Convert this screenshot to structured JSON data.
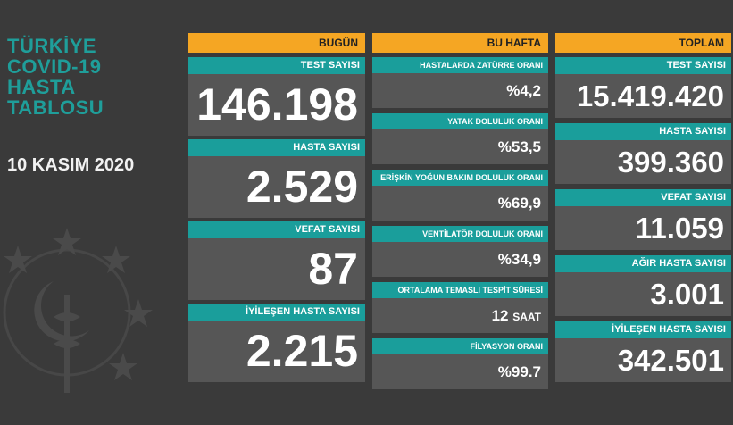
{
  "sidebar": {
    "title_lines": [
      "TÜRKİYE",
      "COVID-19",
      "HASTA",
      "TABLOSU"
    ],
    "date": "10 KASIM 2020"
  },
  "bugun": {
    "header": "BUGÜN",
    "cards": [
      {
        "label": "TEST SAYISI",
        "value": "146.198"
      },
      {
        "label": "HASTA SAYISI",
        "value": "2.529"
      },
      {
        "label": "VEFAT SAYISI",
        "value": "87"
      },
      {
        "label": "İYİLEŞEN HASTA SAYISI",
        "value": "2.215"
      }
    ]
  },
  "hafta": {
    "header": "BU HAFTA",
    "cards": [
      {
        "label": "HASTALARDA ZATÜRRE ORANI",
        "value": "%4,2"
      },
      {
        "label": "YATAK DOLULUK ORANI",
        "value": "%53,5"
      },
      {
        "label": "ERİŞKİN YOĞUN BAKIM DOLULUK ORANI",
        "value": "%69,9"
      },
      {
        "label": "VENTİLATÖR DOLULUK ORANI",
        "value": "%34,9"
      },
      {
        "label": "ORTALAMA TEMASLI TESPİT SÜRESİ",
        "value": "12",
        "unit": "SAAT"
      },
      {
        "label": "FİLYASYON ORANI",
        "value": "%99.7"
      }
    ]
  },
  "toplam": {
    "header": "TOPLAM",
    "cards": [
      {
        "label": "TEST SAYISI",
        "value": "15.419.420"
      },
      {
        "label": "HASTA SAYISI",
        "value": "399.360"
      },
      {
        "label": "VEFAT SAYISI",
        "value": "11.059"
      },
      {
        "label": "AĞIR HASTA SAYISI",
        "value": "3.001"
      },
      {
        "label": "İYİLEŞEN HASTA SAYISI",
        "value": "342.501"
      }
    ]
  },
  "colors": {
    "background": "#3a3a3a",
    "accent_teal": "#1a9e9b",
    "header_orange": "#f5a623",
    "value_panel": "#565656"
  },
  "icons": {
    "background_logo": "ministry-of-health-emblem-icon"
  }
}
